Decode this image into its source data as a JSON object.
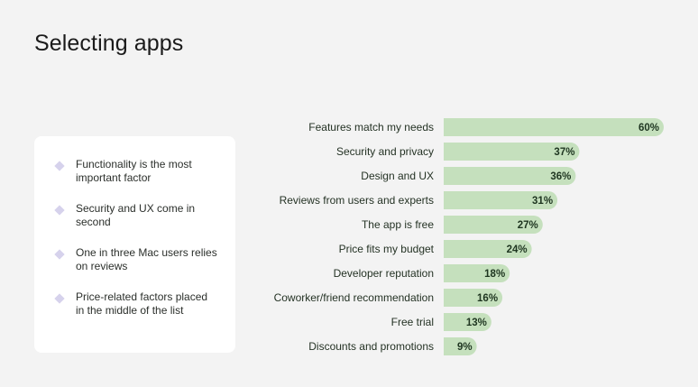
{
  "title": "Selecting apps",
  "notes": [
    "Functionality is the most important factor",
    "Security and UX come in second",
    "One in three Mac users relies on reviews",
    "Price-related factors placed in the middle of the list"
  ],
  "colors": {
    "bar": "#c5e0bd",
    "diamond": "#d6d2ec",
    "card": "#ffffff",
    "background": "#f3f3f3"
  },
  "chart_data": {
    "type": "bar",
    "orientation": "horizontal",
    "title": "",
    "xlabel": "",
    "ylabel": "",
    "xlim": [
      0,
      60
    ],
    "grid": false,
    "categories": [
      "Features match my needs",
      "Security and privacy",
      "Design and UX",
      "Reviews from users and experts",
      "The app is free",
      "Price fits my budget",
      "Developer reputation",
      "Coworker/friend recommendation",
      "Free trial",
      "Discounts and promotions"
    ],
    "values": [
      60,
      37,
      36,
      31,
      27,
      24,
      18,
      16,
      13,
      9
    ],
    "value_labels": [
      "60%",
      "37%",
      "36%",
      "31%",
      "27%",
      "24%",
      "18%",
      "16%",
      "13%",
      "9%"
    ]
  }
}
